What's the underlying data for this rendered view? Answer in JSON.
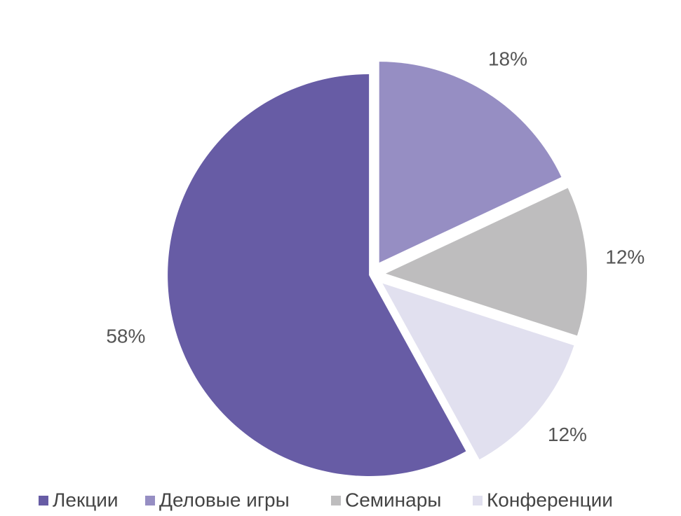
{
  "chart_data": {
    "type": "pie",
    "categories": [
      "Лекции",
      "Деловые игры",
      "Семинары",
      "Конференции"
    ],
    "values": [
      58,
      18,
      12,
      12
    ],
    "value_labels": [
      "58%",
      "18%",
      "12%",
      "12%"
    ],
    "colors": [
      "#675ca5",
      "#968ec3",
      "#bebdbe",
      "#e1e0ef"
    ],
    "legend": "bottom"
  }
}
